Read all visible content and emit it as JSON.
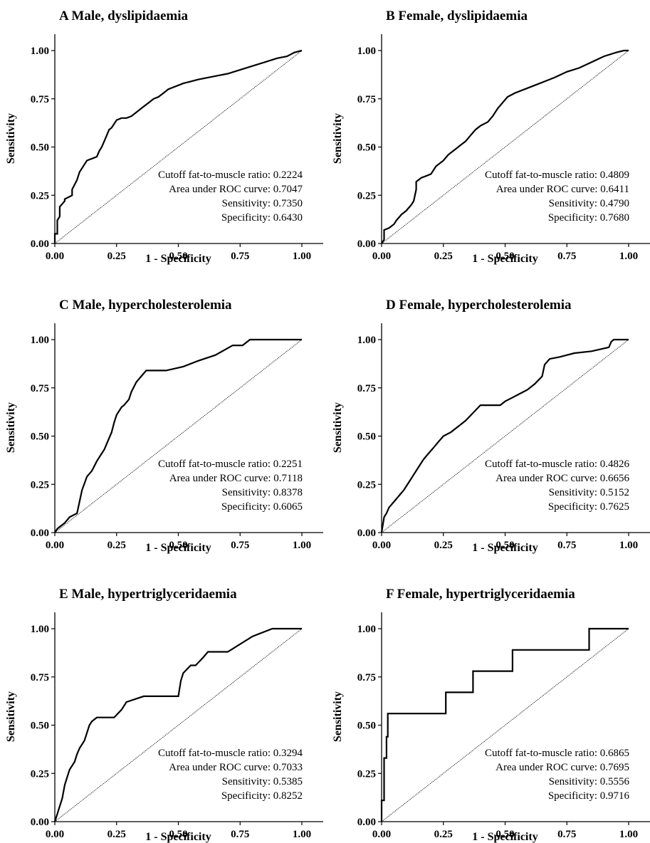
{
  "chart_data": [
    {
      "type": "line",
      "title": "A  Male, dyslipidaemia",
      "xlabel": "1 - Specificity",
      "ylabel": "Sensitivity",
      "xlim": [
        0,
        1.0
      ],
      "ylim": [
        0,
        1.0
      ],
      "xticks": [
        "0.00",
        "0.25",
        "0.50",
        "0.75",
        "1.00"
      ],
      "yticks": [
        "0.00",
        "0.25",
        "0.50",
        "0.75",
        "1.00"
      ],
      "annotations": [
        "Cutoff fat-to-muscle ratio: 0.2224",
        "Area under ROC curve: 0.7047",
        "Sensitivity: 0.7350",
        "Specificity: 0.6430"
      ],
      "series": [
        {
          "x": [
            0,
            0,
            0.01,
            0.01,
            0.02,
            0.02,
            0.04,
            0.04,
            0.07,
            0.07,
            0.09,
            0.1,
            0.11,
            0.12,
            0.13,
            0.15,
            0.17,
            0.18,
            0.19,
            0.2,
            0.21,
            0.22,
            0.23,
            0.25,
            0.25,
            0.27,
            0.29,
            0.31,
            0.33,
            0.35,
            0.37,
            0.38,
            0.39,
            0.4,
            0.42,
            0.44,
            0.46,
            0.48,
            0.5,
            0.52,
            0.55,
            0.58,
            0.62,
            0.66,
            0.7,
            0.75,
            0.8,
            0.85,
            0.9,
            0.94,
            0.97,
            1.0
          ],
          "y": [
            0,
            0.05,
            0.05,
            0.12,
            0.14,
            0.19,
            0.22,
            0.23,
            0.25,
            0.28,
            0.33,
            0.37,
            0.39,
            0.41,
            0.43,
            0.44,
            0.45,
            0.48,
            0.5,
            0.53,
            0.56,
            0.59,
            0.6,
            0.64,
            0.64,
            0.65,
            0.65,
            0.66,
            0.68,
            0.7,
            0.72,
            0.73,
            0.74,
            0.75,
            0.76,
            0.78,
            0.8,
            0.81,
            0.82,
            0.83,
            0.84,
            0.85,
            0.86,
            0.87,
            0.88,
            0.9,
            0.92,
            0.94,
            0.96,
            0.97,
            0.99,
            1.0
          ]
        }
      ]
    },
    {
      "type": "line",
      "title": "B  Female, dyslipidaemia",
      "xlabel": "1 - Specificity",
      "ylabel": "Sensitivity",
      "xlim": [
        0,
        1.0
      ],
      "ylim": [
        0,
        1.0
      ],
      "xticks": [
        "0.00",
        "0.25",
        "0.50",
        "0.75",
        "1.00"
      ],
      "yticks": [
        "0.00",
        "0.25",
        "0.50",
        "0.75",
        "1.00"
      ],
      "annotations": [
        "Cutoff fat-to-muscle ratio: 0.4809",
        "Area under ROC curve: 0.6411",
        "Sensitivity: 0.4790",
        "Specificity: 0.7680"
      ],
      "series": [
        {
          "x": [
            0,
            0.01,
            0.01,
            0.03,
            0.05,
            0.06,
            0.08,
            0.1,
            0.12,
            0.13,
            0.14,
            0.14,
            0.16,
            0.18,
            0.2,
            0.22,
            0.25,
            0.27,
            0.3,
            0.32,
            0.34,
            0.36,
            0.38,
            0.4,
            0.43,
            0.45,
            0.47,
            0.49,
            0.51,
            0.54,
            0.58,
            0.62,
            0.66,
            0.7,
            0.75,
            0.8,
            0.85,
            0.9,
            0.95,
            0.98,
            1.0
          ],
          "y": [
            0,
            0.02,
            0.07,
            0.08,
            0.1,
            0.12,
            0.15,
            0.17,
            0.2,
            0.22,
            0.28,
            0.32,
            0.34,
            0.35,
            0.36,
            0.4,
            0.43,
            0.46,
            0.49,
            0.51,
            0.53,
            0.56,
            0.59,
            0.61,
            0.63,
            0.66,
            0.7,
            0.73,
            0.76,
            0.78,
            0.8,
            0.82,
            0.84,
            0.86,
            0.89,
            0.91,
            0.94,
            0.97,
            0.99,
            1.0,
            1.0
          ]
        }
      ]
    },
    {
      "type": "line",
      "title": "C  Male, hypercholesterolemia",
      "xlabel": "1 - Specificity",
      "ylabel": "Sensitivity",
      "xlim": [
        0,
        1.0
      ],
      "ylim": [
        0,
        1.0
      ],
      "xticks": [
        "0.00",
        "0.25",
        "0.50",
        "0.75",
        "1.00"
      ],
      "yticks": [
        "0.00",
        "0.25",
        "0.50",
        "0.75",
        "1.00"
      ],
      "annotations": [
        "Cutoff fat-to-muscle ratio: 0.2251",
        "Area under ROC curve: 0.7118",
        "Sensitivity: 0.8378",
        "Specificity: 0.6065"
      ],
      "series": [
        {
          "x": [
            0,
            0.01,
            0.02,
            0.04,
            0.06,
            0.09,
            0.1,
            0.11,
            0.13,
            0.15,
            0.17,
            0.19,
            0.2,
            0.21,
            0.23,
            0.24,
            0.25,
            0.27,
            0.28,
            0.3,
            0.31,
            0.33,
            0.35,
            0.37,
            0.38,
            0.4,
            0.45,
            0.52,
            0.58,
            0.65,
            0.72,
            0.76,
            0.79,
            0.84,
            1.0
          ],
          "y": [
            0,
            0.02,
            0.03,
            0.05,
            0.08,
            0.1,
            0.16,
            0.22,
            0.29,
            0.32,
            0.37,
            0.41,
            0.43,
            0.46,
            0.52,
            0.57,
            0.61,
            0.65,
            0.66,
            0.69,
            0.73,
            0.78,
            0.81,
            0.84,
            0.84,
            0.84,
            0.84,
            0.86,
            0.89,
            0.92,
            0.97,
            0.97,
            1.0,
            1.0,
            1.0
          ]
        }
      ]
    },
    {
      "type": "line",
      "title": "D  Female, hypercholesterolemia",
      "xlabel": "1 - Specificity",
      "ylabel": "Sensitivity",
      "xlim": [
        0,
        1.0
      ],
      "ylim": [
        0,
        1.0
      ],
      "xticks": [
        "0.00",
        "0.25",
        "0.50",
        "0.75",
        "1.00"
      ],
      "yticks": [
        "0.00",
        "0.25",
        "0.50",
        "0.75",
        "1.00"
      ],
      "annotations": [
        "Cutoff fat-to-muscle ratio: 0.4826",
        "Area under ROC curve: 0.6656",
        "Sensitivity: 0.5152",
        "Specificity: 0.7625"
      ],
      "series": [
        {
          "x": [
            0,
            0.01,
            0.02,
            0.03,
            0.05,
            0.07,
            0.09,
            0.11,
            0.13,
            0.15,
            0.17,
            0.19,
            0.21,
            0.23,
            0.25,
            0.28,
            0.31,
            0.34,
            0.37,
            0.4,
            0.44,
            0.48,
            0.5,
            0.53,
            0.56,
            0.59,
            0.62,
            0.65,
            0.66,
            0.68,
            0.72,
            0.78,
            0.85,
            0.92,
            0.93,
            0.94,
            1.0
          ],
          "y": [
            0,
            0.08,
            0.1,
            0.13,
            0.16,
            0.19,
            0.22,
            0.26,
            0.3,
            0.34,
            0.38,
            0.41,
            0.44,
            0.47,
            0.5,
            0.52,
            0.55,
            0.58,
            0.62,
            0.66,
            0.66,
            0.66,
            0.68,
            0.7,
            0.72,
            0.74,
            0.77,
            0.81,
            0.87,
            0.9,
            0.91,
            0.93,
            0.94,
            0.96,
            0.99,
            1.0,
            1.0
          ]
        }
      ]
    },
    {
      "type": "line",
      "title": "E  Male, hypertriglyceridaemia",
      "xlabel": "1 - Specificity",
      "ylabel": "Sensitivity",
      "xlim": [
        0,
        1.0
      ],
      "ylim": [
        0,
        1.0
      ],
      "xticks": [
        "0.00",
        "0.25",
        "0.50",
        "0.75",
        "1.00"
      ],
      "yticks": [
        "0.00",
        "0.25",
        "0.50",
        "0.75",
        "1.00"
      ],
      "annotations": [
        "Cutoff fat-to-muscle ratio: 0.3294",
        "Area under ROC curve: 0.7033",
        "Sensitivity: 0.5385",
        "Specificity: 0.8252"
      ],
      "series": [
        {
          "x": [
            0,
            0.01,
            0.02,
            0.03,
            0.04,
            0.05,
            0.06,
            0.08,
            0.09,
            0.1,
            0.12,
            0.13,
            0.14,
            0.15,
            0.17,
            0.19,
            0.24,
            0.27,
            0.29,
            0.36,
            0.43,
            0.5,
            0.51,
            0.52,
            0.55,
            0.57,
            0.6,
            0.62,
            0.64,
            0.7,
            0.75,
            0.8,
            0.88,
            0.95,
            1.0
          ],
          "y": [
            0,
            0.04,
            0.08,
            0.12,
            0.19,
            0.23,
            0.27,
            0.31,
            0.35,
            0.38,
            0.42,
            0.46,
            0.5,
            0.52,
            0.54,
            0.54,
            0.54,
            0.58,
            0.62,
            0.65,
            0.65,
            0.65,
            0.73,
            0.77,
            0.81,
            0.81,
            0.85,
            0.88,
            0.88,
            0.88,
            0.92,
            0.96,
            1.0,
            1.0,
            1.0
          ]
        }
      ]
    },
    {
      "type": "line",
      "title": "F  Female, hypertriglyceridaemia",
      "xlabel": "1 - Specificity",
      "ylabel": "Sensitivity",
      "xlim": [
        0,
        1.0
      ],
      "ylim": [
        0,
        1.0
      ],
      "xticks": [
        "0.00",
        "0.25",
        "0.50",
        "0.75",
        "1.00"
      ],
      "yticks": [
        "0.00",
        "0.25",
        "0.50",
        "0.75",
        "1.00"
      ],
      "annotations": [
        "Cutoff fat-to-muscle ratio: 0.6865",
        "Area under ROC curve: 0.7695",
        "Sensitivity: 0.5556",
        "Specificity: 0.9716"
      ],
      "series": [
        {
          "x": [
            0,
            0,
            0.01,
            0.01,
            0.02,
            0.02,
            0.025,
            0.025,
            0.26,
            0.26,
            0.37,
            0.37,
            0.53,
            0.53,
            0.84,
            0.84,
            1.0
          ],
          "y": [
            0,
            0.11,
            0.11,
            0.33,
            0.33,
            0.44,
            0.44,
            0.56,
            0.56,
            0.67,
            0.67,
            0.78,
            0.78,
            0.89,
            0.89,
            1.0,
            1.0
          ]
        }
      ]
    }
  ]
}
